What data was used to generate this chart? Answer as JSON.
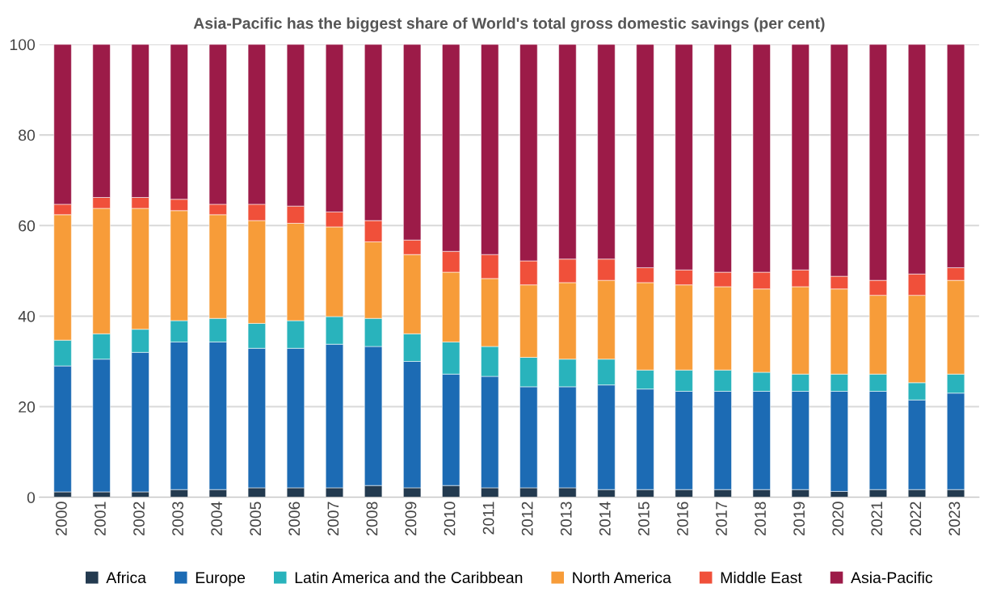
{
  "chart_data": {
    "type": "bar",
    "stacked": true,
    "title": "Asia-Pacific has the biggest share of World's total gross domestic savings (per cent)",
    "categories": [
      "2000",
      "2001",
      "2002",
      "2003",
      "2004",
      "2005",
      "2006",
      "2007",
      "2008",
      "2009",
      "2010",
      "2011",
      "2012",
      "2013",
      "2014",
      "2015",
      "2016",
      "2017",
      "2018",
      "2019",
      "2020",
      "2021",
      "2022",
      "2023"
    ],
    "series": [
      {
        "name": "Africa",
        "color": "#233a4f",
        "values": [
          1.2,
          1.2,
          1.2,
          1.7,
          1.7,
          2.1,
          2.1,
          2.1,
          2.6,
          2.1,
          2.6,
          2.1,
          2.1,
          2.1,
          1.7,
          1.7,
          1.7,
          1.7,
          1.7,
          1.7,
          1.3,
          1.7,
          1.7,
          1.7
        ]
      },
      {
        "name": "Europe",
        "color": "#1c6bb4",
        "values": [
          27.8,
          29.3,
          30.8,
          32.6,
          32.6,
          30.8,
          30.8,
          31.7,
          30.7,
          27.9,
          24.6,
          24.6,
          22.3,
          22.3,
          23.1,
          22.2,
          21.7,
          21.7,
          21.7,
          21.7,
          22.1,
          21.7,
          19.8,
          21.3
        ]
      },
      {
        "name": "Latin America and the Caribbean",
        "color": "#29b3bc",
        "values": [
          5.7,
          5.6,
          5.1,
          4.7,
          5.2,
          5.5,
          6.1,
          6.1,
          6.2,
          6.1,
          7.1,
          6.6,
          6.5,
          6.1,
          5.7,
          4.2,
          4.7,
          4.7,
          4.2,
          3.8,
          3.8,
          3.8,
          3.8,
          4.2
        ]
      },
      {
        "name": "North America",
        "color": "#f79c39",
        "values": [
          27.7,
          27.7,
          26.7,
          24.3,
          22.9,
          22.7,
          21.5,
          19.8,
          16.9,
          17.5,
          15.4,
          15.0,
          16.0,
          16.9,
          17.4,
          19.3,
          18.8,
          18.4,
          18.4,
          19.3,
          18.8,
          17.4,
          19.3,
          20.7
        ]
      },
      {
        "name": "Middle East",
        "color": "#f0503a",
        "values": [
          2.3,
          2.4,
          2.4,
          2.5,
          2.3,
          3.6,
          3.8,
          3.3,
          4.7,
          3.2,
          4.6,
          5.3,
          5.3,
          5.2,
          4.7,
          3.3,
          3.3,
          3.2,
          3.7,
          3.7,
          2.8,
          3.3,
          4.7,
          2.8
        ]
      },
      {
        "name": "Asia-Pacific",
        "color": "#9c1b48",
        "values": [
          35.3,
          33.8,
          33.8,
          34.2,
          35.3,
          35.3,
          35.7,
          37.0,
          38.9,
          43.2,
          45.7,
          46.4,
          47.8,
          47.4,
          47.4,
          49.3,
          49.8,
          50.3,
          50.3,
          49.8,
          51.2,
          52.1,
          50.7,
          49.3
        ]
      }
    ],
    "ylim": [
      0,
      100
    ],
    "yticks": [
      0,
      20,
      40,
      60,
      80,
      100
    ],
    "grid": "y",
    "legend": "bottom"
  }
}
